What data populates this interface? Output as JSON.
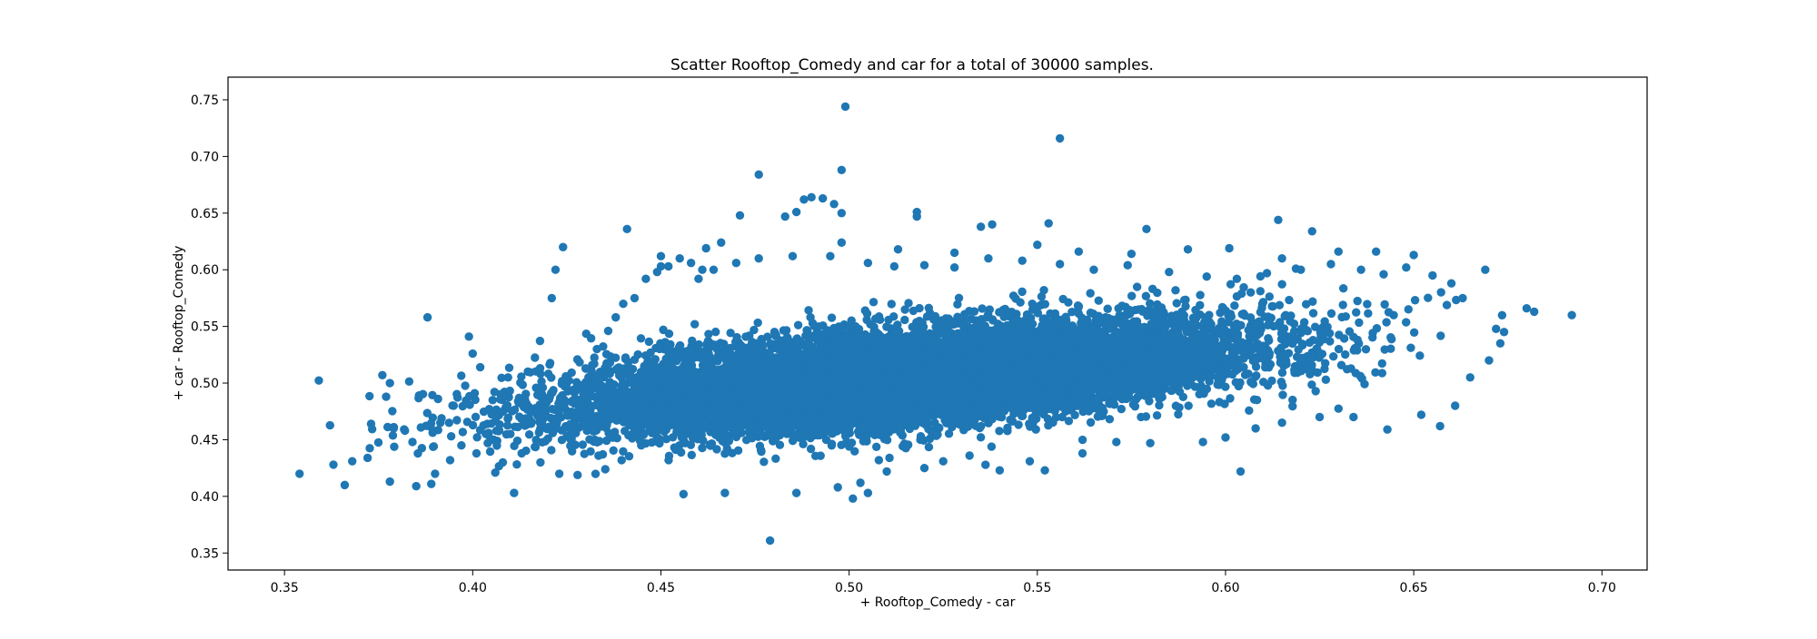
{
  "chart_data": {
    "type": "scatter",
    "title": "Scatter Rooftop_Comedy and car for a total of 30000 samples.",
    "xlabel": "+ Rooftop_Comedy - car",
    "ylabel": "+ car - Rooftop_Comedy",
    "xlim": [
      0.335,
      0.712
    ],
    "ylim": [
      0.335,
      0.77
    ],
    "xticks": [
      0.35,
      0.4,
      0.45,
      0.5,
      0.55,
      0.6,
      0.65,
      0.7
    ],
    "xtick_labels": [
      "0.35",
      "0.40",
      "0.45",
      "0.50",
      "0.55",
      "0.60",
      "0.65",
      "0.70"
    ],
    "yticks": [
      0.35,
      0.4,
      0.45,
      0.5,
      0.55,
      0.6,
      0.65,
      0.7,
      0.75
    ],
    "ytick_labels": [
      "0.35",
      "0.40",
      "0.45",
      "0.50",
      "0.55",
      "0.60",
      "0.65",
      "0.70",
      "0.75"
    ],
    "grid": false,
    "legend": "none",
    "marker_color": "#1f77b4",
    "series": [
      {
        "values": [
          [
            0.499,
            0.744
          ],
          [
            0.556,
            0.716
          ],
          [
            0.498,
            0.688
          ],
          [
            0.476,
            0.684
          ],
          [
            0.49,
            0.664
          ],
          [
            0.493,
            0.663
          ],
          [
            0.488,
            0.662
          ],
          [
            0.496,
            0.658
          ],
          [
            0.486,
            0.651
          ],
          [
            0.498,
            0.65
          ],
          [
            0.518,
            0.651
          ],
          [
            0.518,
            0.647
          ],
          [
            0.471,
            0.648
          ],
          [
            0.483,
            0.647
          ],
          [
            0.614,
            0.644
          ],
          [
            0.553,
            0.641
          ],
          [
            0.538,
            0.64
          ],
          [
            0.535,
            0.638
          ],
          [
            0.441,
            0.636
          ],
          [
            0.579,
            0.636
          ],
          [
            0.623,
            0.634
          ],
          [
            0.601,
            0.619
          ],
          [
            0.424,
            0.62
          ],
          [
            0.45,
            0.612
          ],
          [
            0.462,
            0.619
          ],
          [
            0.466,
            0.624
          ],
          [
            0.498,
            0.624
          ],
          [
            0.513,
            0.618
          ],
          [
            0.528,
            0.615
          ],
          [
            0.55,
            0.622
          ],
          [
            0.561,
            0.616
          ],
          [
            0.575,
            0.614
          ],
          [
            0.59,
            0.618
          ],
          [
            0.63,
            0.616
          ],
          [
            0.64,
            0.616
          ],
          [
            0.65,
            0.613
          ],
          [
            0.615,
            0.61
          ],
          [
            0.669,
            0.6
          ],
          [
            0.422,
            0.6
          ],
          [
            0.45,
            0.603
          ],
          [
            0.388,
            0.558
          ],
          [
            0.421,
            0.575
          ],
          [
            0.376,
            0.507
          ],
          [
            0.378,
            0.5
          ],
          [
            0.377,
            0.488
          ],
          [
            0.373,
            0.464
          ],
          [
            0.399,
            0.541
          ],
          [
            0.4,
            0.526
          ],
          [
            0.402,
            0.514
          ],
          [
            0.379,
            0.46
          ],
          [
            0.382,
            0.458
          ],
          [
            0.384,
            0.448
          ],
          [
            0.354,
            0.42
          ],
          [
            0.363,
            0.428
          ],
          [
            0.366,
            0.41
          ],
          [
            0.368,
            0.431
          ],
          [
            0.378,
            0.413
          ],
          [
            0.385,
            0.409
          ],
          [
            0.389,
            0.411
          ],
          [
            0.411,
            0.403
          ],
          [
            0.39,
            0.42
          ],
          [
            0.394,
            0.432
          ],
          [
            0.397,
            0.445
          ],
          [
            0.401,
            0.438
          ],
          [
            0.404,
            0.447
          ],
          [
            0.406,
            0.421
          ],
          [
            0.408,
            0.43
          ],
          [
            0.41,
            0.455
          ],
          [
            0.413,
            0.438
          ],
          [
            0.415,
            0.468
          ],
          [
            0.418,
            0.43
          ],
          [
            0.42,
            0.451
          ],
          [
            0.423,
            0.42
          ],
          [
            0.426,
            0.46
          ],
          [
            0.428,
            0.485
          ],
          [
            0.43,
            0.513
          ],
          [
            0.433,
            0.53
          ],
          [
            0.436,
            0.546
          ],
          [
            0.438,
            0.558
          ],
          [
            0.44,
            0.57
          ],
          [
            0.443,
            0.575
          ],
          [
            0.446,
            0.592
          ],
          [
            0.449,
            0.598
          ],
          [
            0.452,
            0.603
          ],
          [
            0.455,
            0.61
          ],
          [
            0.458,
            0.606
          ],
          [
            0.461,
            0.6
          ],
          [
            0.464,
            0.6
          ],
          [
            0.479,
            0.361
          ],
          [
            0.501,
            0.398
          ],
          [
            0.505,
            0.403
          ],
          [
            0.503,
            0.412
          ],
          [
            0.456,
            0.402
          ],
          [
            0.467,
            0.403
          ],
          [
            0.486,
            0.403
          ],
          [
            0.497,
            0.408
          ],
          [
            0.604,
            0.422
          ],
          [
            0.552,
            0.423
          ],
          [
            0.54,
            0.423
          ],
          [
            0.52,
            0.425
          ],
          [
            0.51,
            0.422
          ],
          [
            0.525,
            0.431
          ],
          [
            0.532,
            0.436
          ],
          [
            0.548,
            0.431
          ],
          [
            0.562,
            0.438
          ],
          [
            0.571,
            0.448
          ],
          [
            0.58,
            0.447
          ],
          [
            0.594,
            0.448
          ],
          [
            0.6,
            0.452
          ],
          [
            0.608,
            0.46
          ],
          [
            0.615,
            0.465
          ],
          [
            0.625,
            0.47
          ],
          [
            0.634,
            0.47
          ],
          [
            0.643,
            0.459
          ],
          [
            0.652,
            0.472
          ],
          [
            0.657,
            0.462
          ],
          [
            0.661,
            0.48
          ],
          [
            0.665,
            0.505
          ],
          [
            0.67,
            0.52
          ],
          [
            0.673,
            0.535
          ],
          [
            0.674,
            0.545
          ],
          [
            0.68,
            0.566
          ],
          [
            0.682,
            0.563
          ],
          [
            0.692,
            0.56
          ],
          [
            0.663,
            0.575
          ],
          [
            0.66,
            0.588
          ],
          [
            0.655,
            0.595
          ],
          [
            0.648,
            0.602
          ],
          [
            0.642,
            0.596
          ],
          [
            0.636,
            0.6
          ],
          [
            0.628,
            0.605
          ],
          [
            0.62,
            0.6
          ],
          [
            0.611,
            0.597
          ],
          [
            0.603,
            0.592
          ],
          [
            0.595,
            0.594
          ],
          [
            0.585,
            0.598
          ],
          [
            0.574,
            0.604
          ],
          [
            0.565,
            0.6
          ],
          [
            0.556,
            0.605
          ],
          [
            0.546,
            0.608
          ],
          [
            0.537,
            0.61
          ],
          [
            0.528,
            0.602
          ],
          [
            0.52,
            0.604
          ],
          [
            0.512,
            0.603
          ],
          [
            0.505,
            0.606
          ],
          [
            0.495,
            0.612
          ],
          [
            0.485,
            0.612
          ],
          [
            0.476,
            0.61
          ],
          [
            0.47,
            0.606
          ],
          [
            0.46,
            0.592
          ]
        ]
      }
    ],
    "density": {
      "covariance": [
        [
          0.00195,
          0.00055
        ],
        [
          0.00055,
          0.00064
        ]
      ],
      "mean": [
        0.515,
        0.505
      ]
    }
  }
}
